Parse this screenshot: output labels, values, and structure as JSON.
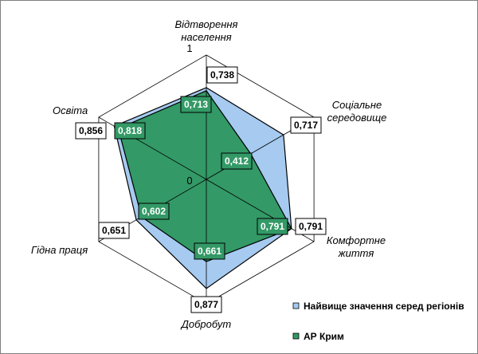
{
  "chart_data": {
    "type": "radar",
    "title": "",
    "categories": [
      "Відтворення населення",
      "Соціальне середовище",
      "Комфортне життя",
      "Добробут",
      "Гідна праця",
      "Освіта"
    ],
    "category_lines": [
      [
        "Відтворення",
        "населення"
      ],
      [
        "Соціальне",
        "середовище"
      ],
      [
        "Комфортне",
        "життя"
      ],
      [
        "Добробут"
      ],
      [
        "Гідна праця"
      ],
      [
        "Освіта"
      ]
    ],
    "axis_range": [
      0,
      1
    ],
    "ticks": [
      "0",
      "1"
    ],
    "grid": true,
    "legend_position": "bottom-right",
    "series": [
      {
        "name": "Найвище значення серед регіонів",
        "values": [
          0.738,
          0.717,
          0.791,
          0.877,
          0.651,
          0.856
        ],
        "labels": [
          "0,738",
          "0,717",
          "0,791",
          "0,877",
          "0,651",
          "0,856"
        ],
        "color": "#a6caf0"
      },
      {
        "name": "АР Крим",
        "values": [
          0.713,
          0.412,
          0.791,
          0.661,
          0.602,
          0.818
        ],
        "labels": [
          "0,713",
          "0,412",
          "0,791",
          "0,661",
          "0,602",
          "0,818"
        ],
        "color": "#339966"
      }
    ]
  }
}
